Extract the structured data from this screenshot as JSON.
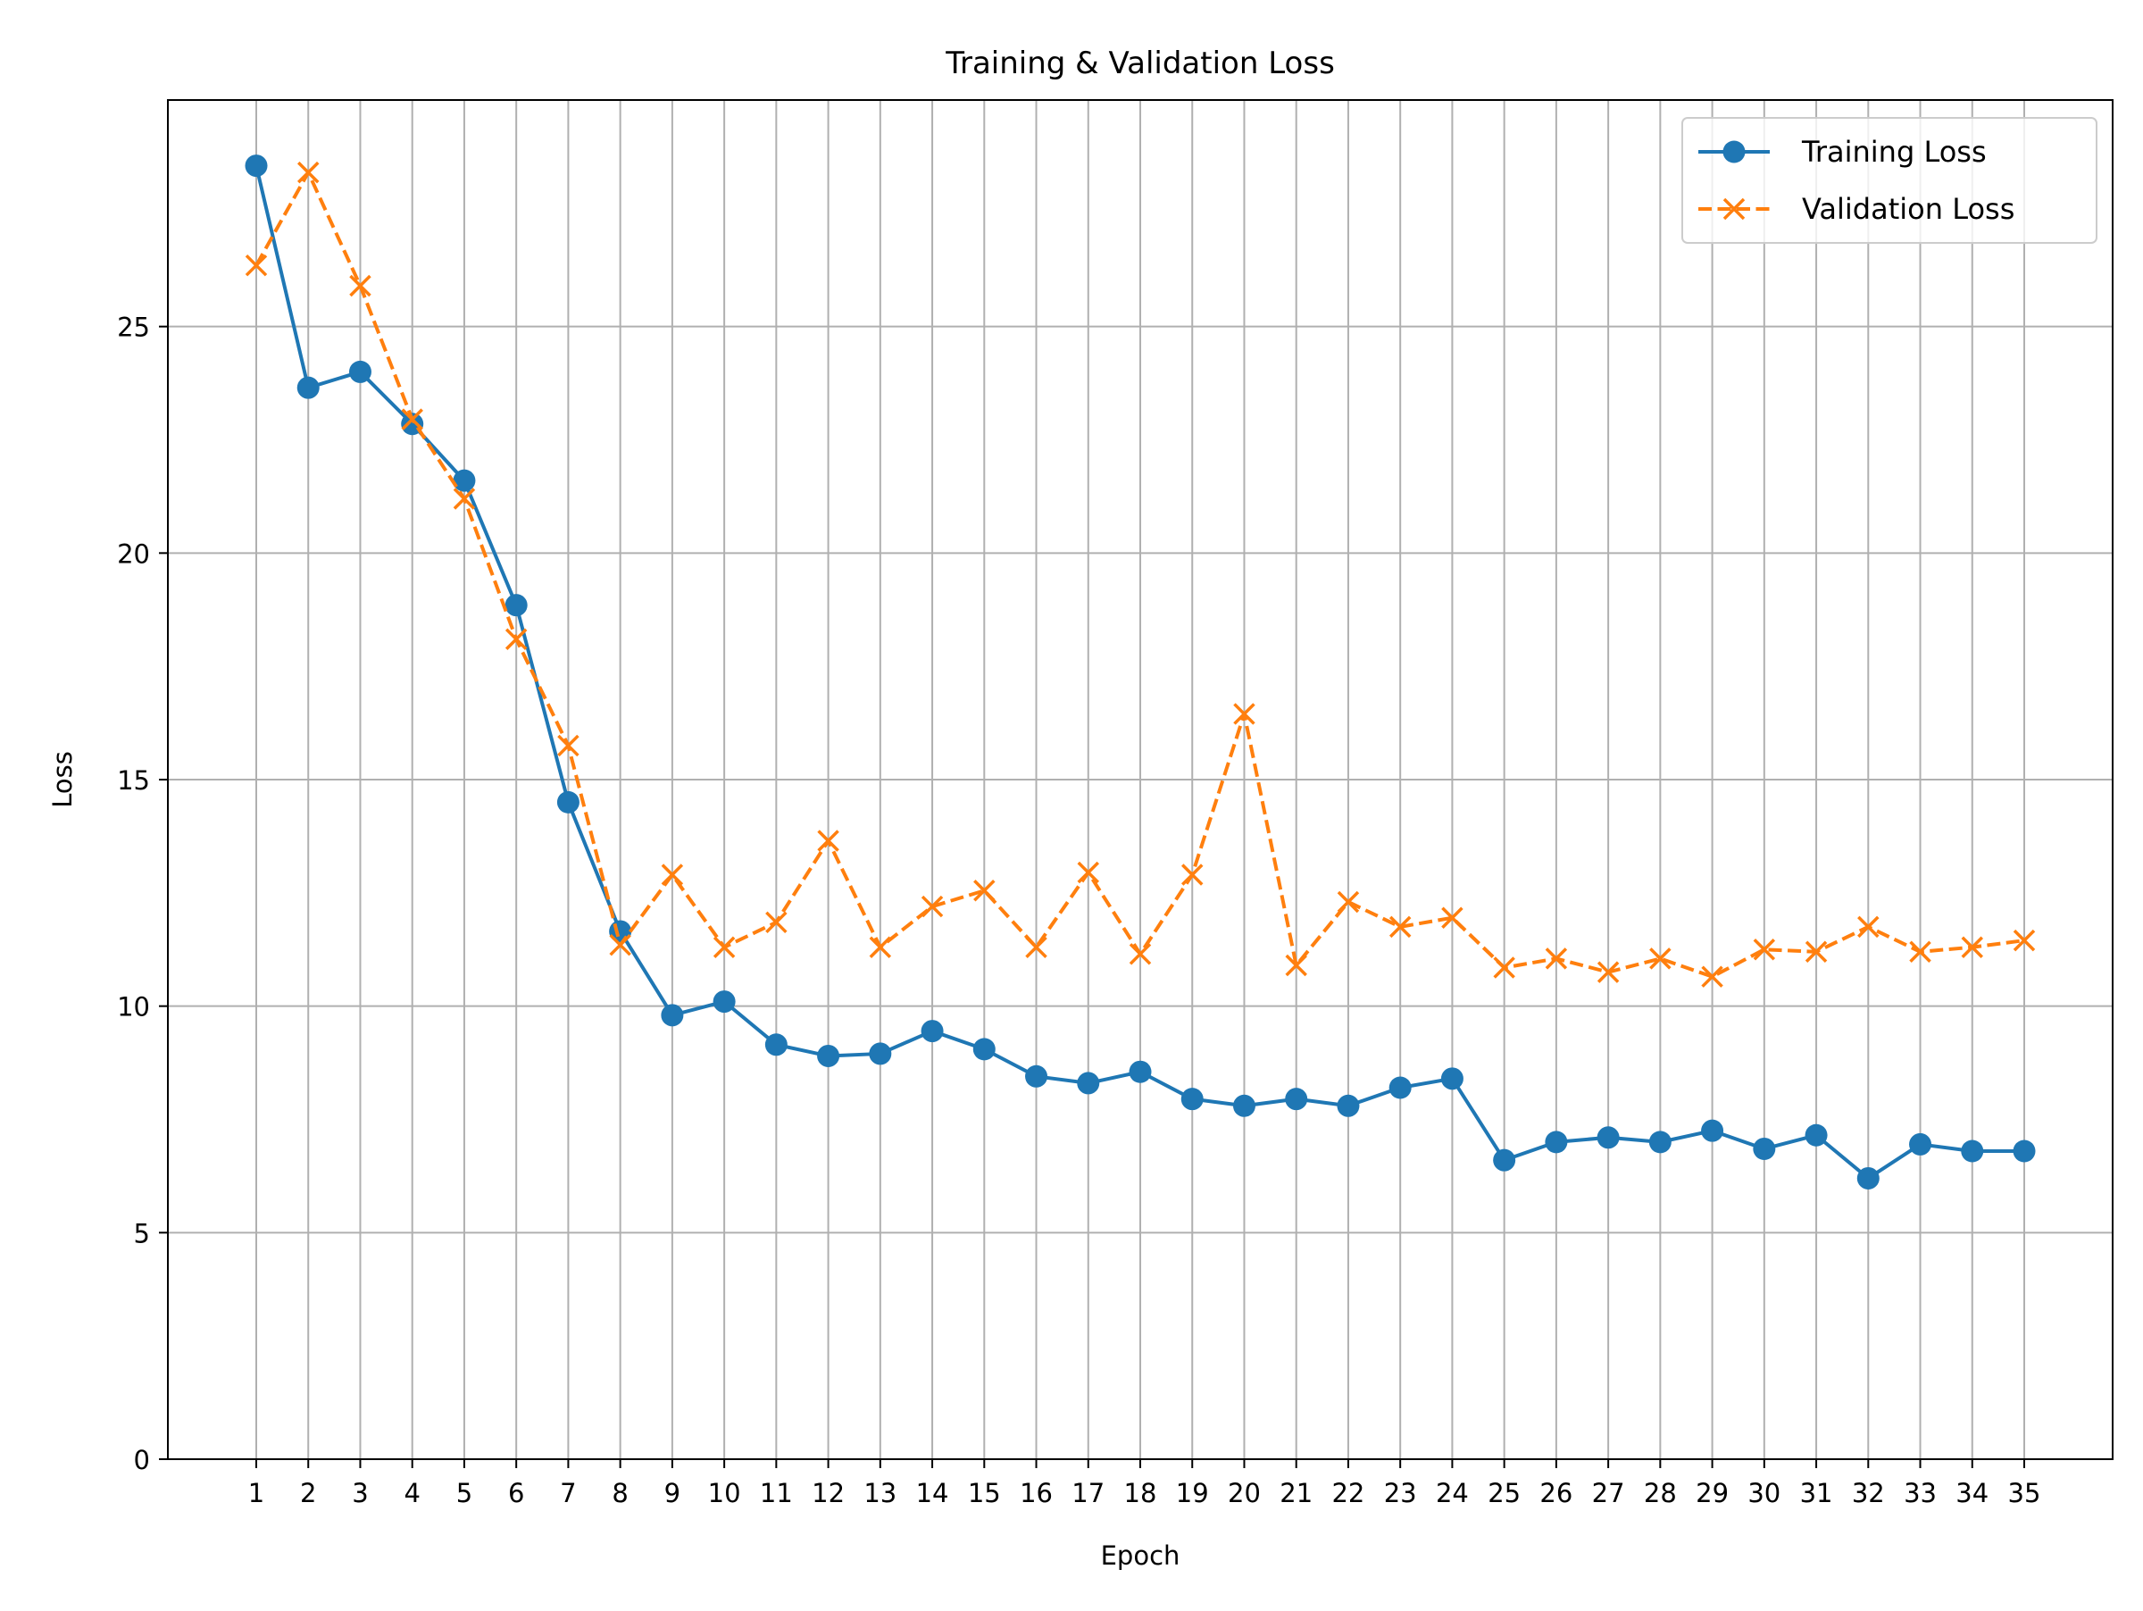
{
  "chart_data": {
    "type": "line",
    "title": "Training & Validation Loss",
    "xlabel": "Epoch",
    "ylabel": "Loss",
    "x": [
      1,
      2,
      3,
      4,
      5,
      6,
      7,
      8,
      9,
      10,
      11,
      12,
      13,
      14,
      15,
      16,
      17,
      18,
      19,
      20,
      21,
      22,
      23,
      24,
      25,
      26,
      27,
      28,
      29,
      30,
      31,
      32,
      33,
      34,
      35
    ],
    "xlim": [
      -0.7,
      36.7
    ],
    "ylim": [
      0,
      30
    ],
    "yticks": [
      0,
      5,
      10,
      15,
      20,
      25
    ],
    "grid": true,
    "legend_position": "top-right",
    "series": [
      {
        "name": "Training Loss",
        "color": "#1f77b4",
        "marker": "circle",
        "linestyle": "solid",
        "values": [
          28.55,
          23.65,
          24.0,
          22.85,
          21.6,
          18.85,
          14.5,
          11.65,
          9.8,
          10.1,
          9.15,
          8.9,
          8.95,
          9.45,
          9.05,
          8.45,
          8.3,
          8.55,
          7.95,
          7.8,
          7.95,
          7.8,
          8.2,
          8.4,
          6.6,
          7.0,
          7.1,
          7.0,
          7.25,
          6.85,
          7.15,
          6.2,
          6.95,
          6.8,
          6.8
        ]
      },
      {
        "name": "Validation Loss",
        "color": "#ff7f0e",
        "marker": "x",
        "linestyle": "dashed",
        "values": [
          26.35,
          28.4,
          25.9,
          22.95,
          21.2,
          18.1,
          15.75,
          11.35,
          12.9,
          11.3,
          11.85,
          13.65,
          11.3,
          12.2,
          12.55,
          11.3,
          12.95,
          11.15,
          12.9,
          16.45,
          10.9,
          12.3,
          11.75,
          11.95,
          10.85,
          11.05,
          10.75,
          11.05,
          10.65,
          11.25,
          11.2,
          11.75,
          11.2,
          11.3,
          11.45
        ]
      }
    ]
  }
}
